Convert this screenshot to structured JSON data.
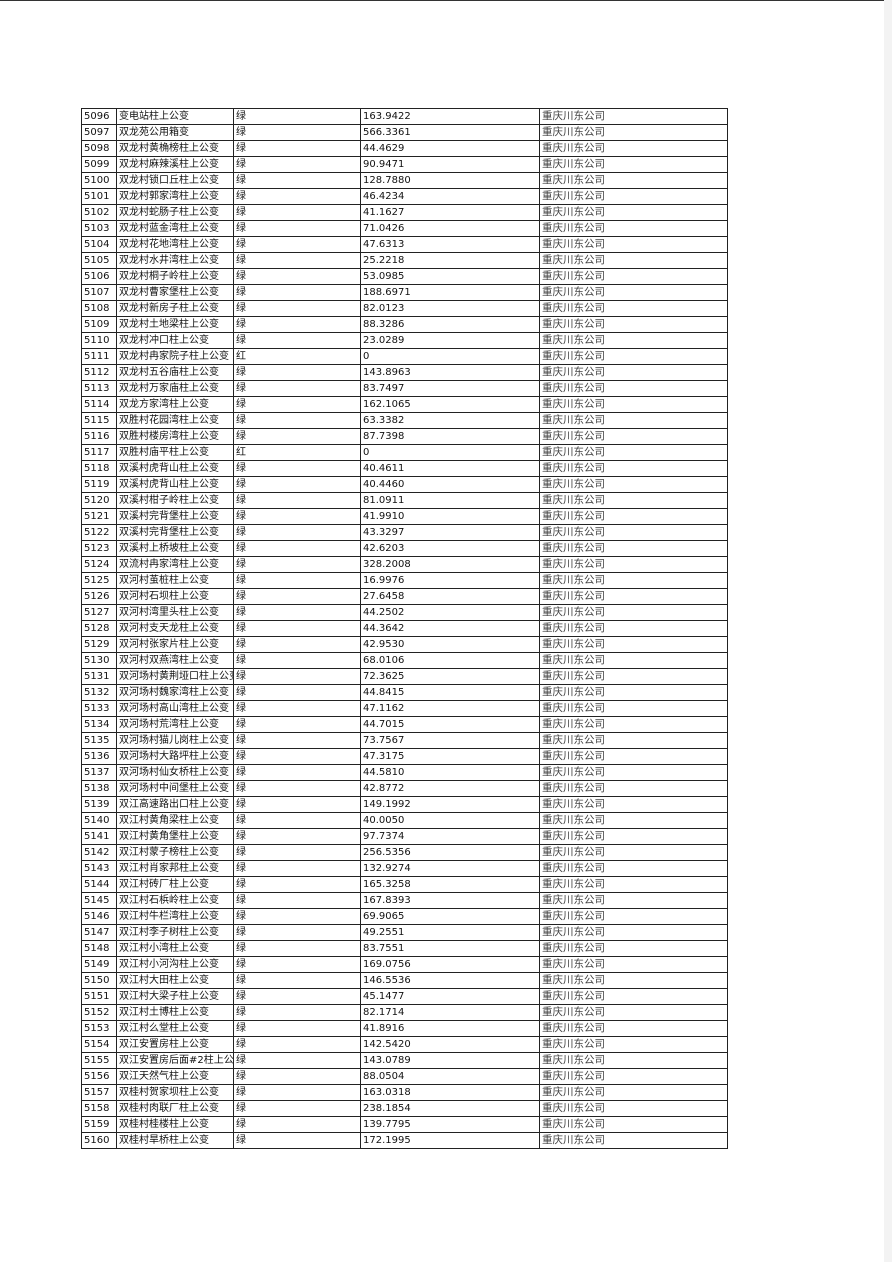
{
  "table": {
    "rows": [
      [
        "5096",
        "变电站柱上公变",
        "绿",
        "163.9422",
        "重庆川东公司"
      ],
      [
        "5097",
        "双龙苑公用箱变",
        "绿",
        "566.3361",
        "重庆川东公司"
      ],
      [
        "5098",
        "双龙村黄桷榜柱上公变",
        "绿",
        "44.4629",
        "重庆川东公司"
      ],
      [
        "5099",
        "双龙村麻辣溪柱上公变",
        "绿",
        "90.9471",
        "重庆川东公司"
      ],
      [
        "5100",
        "双龙村锁口丘柱上公变",
        "绿",
        "128.7880",
        "重庆川东公司"
      ],
      [
        "5101",
        "双龙村郭家湾柱上公变",
        "绿",
        "46.4234",
        "重庆川东公司"
      ],
      [
        "5102",
        "双龙村蛇肠子柱上公变",
        "绿",
        "41.1627",
        "重庆川东公司"
      ],
      [
        "5103",
        "双龙村蓝金湾柱上公变",
        "绿",
        "71.0426",
        "重庆川东公司"
      ],
      [
        "5104",
        "双龙村花地湾柱上公变",
        "绿",
        "47.6313",
        "重庆川东公司"
      ],
      [
        "5105",
        "双龙村水井湾柱上公变",
        "绿",
        "25.2218",
        "重庆川东公司"
      ],
      [
        "5106",
        "双龙村桐子岭柱上公变",
        "绿",
        "53.0985",
        "重庆川东公司"
      ],
      [
        "5107",
        "双龙村曹家堡柱上公变",
        "绿",
        "188.6971",
        "重庆川东公司"
      ],
      [
        "5108",
        "双龙村新房子柱上公变",
        "绿",
        "82.0123",
        "重庆川东公司"
      ],
      [
        "5109",
        "双龙村土地梁柱上公变",
        "绿",
        "88.3286",
        "重庆川东公司"
      ],
      [
        "5110",
        "双龙村冲口柱上公变",
        "绿",
        "23.0289",
        "重庆川东公司"
      ],
      [
        "5111",
        "双龙村冉家院子柱上公变",
        "红",
        "0",
        "重庆川东公司"
      ],
      [
        "5112",
        "双龙村五谷庙柱上公变",
        "绿",
        "143.8963",
        "重庆川东公司"
      ],
      [
        "5113",
        "双龙村万家庙柱上公变",
        "绿",
        "83.7497",
        "重庆川东公司"
      ],
      [
        "5114",
        "双龙方家湾柱上公变",
        "绿",
        "162.1065",
        "重庆川东公司"
      ],
      [
        "5115",
        "双胜村花园湾柱上公变",
        "绿",
        "63.3382",
        "重庆川东公司"
      ],
      [
        "5116",
        "双胜村楼房湾柱上公变",
        "绿",
        "87.7398",
        "重庆川东公司"
      ],
      [
        "5117",
        "双胜村庙平柱上公变",
        "红",
        "0",
        "重庆川东公司"
      ],
      [
        "5118",
        "双溪村虎背山柱上公变",
        "绿",
        "40.4611",
        "重庆川东公司"
      ],
      [
        "5119",
        "双溪村虎背山柱上公变",
        "绿",
        "40.4460",
        "重庆川东公司"
      ],
      [
        "5120",
        "双溪村柑子岭柱上公变",
        "绿",
        "81.0911",
        "重庆川东公司"
      ],
      [
        "5121",
        "双溪村完背堡柱上公变",
        "绿",
        "41.9910",
        "重庆川东公司"
      ],
      [
        "5122",
        "双溪村完背堡柱上公变",
        "绿",
        "43.3297",
        "重庆川东公司"
      ],
      [
        "5123",
        "双溪村上桥坡柱上公变",
        "绿",
        "42.6203",
        "重庆川东公司"
      ],
      [
        "5124",
        "双流村冉家湾柱上公变",
        "绿",
        "328.2008",
        "重庆川东公司"
      ],
      [
        "5125",
        "双河村茧桩柱上公变",
        "绿",
        "16.9976",
        "重庆川东公司"
      ],
      [
        "5126",
        "双河村石坝柱上公变",
        "绿",
        "27.6458",
        "重庆川东公司"
      ],
      [
        "5127",
        "双河村湾里头柱上公变",
        "绿",
        "44.2502",
        "重庆川东公司"
      ],
      [
        "5128",
        "双河村支天龙柱上公变",
        "绿",
        "44.3642",
        "重庆川东公司"
      ],
      [
        "5129",
        "双河村张家片柱上公变",
        "绿",
        "42.9530",
        "重庆川东公司"
      ],
      [
        "5130",
        "双河村双燕湾柱上公变",
        "绿",
        "68.0106",
        "重庆川东公司"
      ],
      [
        "5131",
        "双河场村黄荆垭口柱上公变",
        "绿",
        "72.3625",
        "重庆川东公司"
      ],
      [
        "5132",
        "双河场村魏家湾柱上公变",
        "绿",
        "44.8415",
        "重庆川东公司"
      ],
      [
        "5133",
        "双河场村高山湾柱上公变",
        "绿",
        "47.1162",
        "重庆川东公司"
      ],
      [
        "5134",
        "双河场村荒湾柱上公变",
        "绿",
        "44.7015",
        "重庆川东公司"
      ],
      [
        "5135",
        "双河场村猫儿岗柱上公变",
        "绿",
        "73.7567",
        "重庆川东公司"
      ],
      [
        "5136",
        "双河场村大路坪柱上公变",
        "绿",
        "47.3175",
        "重庆川东公司"
      ],
      [
        "5137",
        "双河场村仙女桥柱上公变",
        "绿",
        "44.5810",
        "重庆川东公司"
      ],
      [
        "5138",
        "双河场村中间堡柱上公变",
        "绿",
        "42.8772",
        "重庆川东公司"
      ],
      [
        "5139",
        "双江高速路出口柱上公变",
        "绿",
        "149.1992",
        "重庆川东公司"
      ],
      [
        "5140",
        "双江村黄角梁柱上公变",
        "绿",
        "40.0050",
        "重庆川东公司"
      ],
      [
        "5141",
        "双江村黄角堡柱上公变",
        "绿",
        "97.7374",
        "重庆川东公司"
      ],
      [
        "5142",
        "双江村蒙子榜柱上公变",
        "绿",
        "256.5356",
        "重庆川东公司"
      ],
      [
        "5143",
        "双江村肖家邦柱上公变",
        "绿",
        "132.9274",
        "重庆川东公司"
      ],
      [
        "5144",
        "双江村砖厂柱上公变",
        "绿",
        "165.3258",
        "重庆川东公司"
      ],
      [
        "5145",
        "双江村石梹岭柱上公变",
        "绿",
        "167.8393",
        "重庆川东公司"
      ],
      [
        "5146",
        "双江村牛栏湾柱上公变",
        "绿",
        "69.9065",
        "重庆川东公司"
      ],
      [
        "5147",
        "双江村李子树柱上公变",
        "绿",
        "49.2551",
        "重庆川东公司"
      ],
      [
        "5148",
        "双江村小湾柱上公变",
        "绿",
        "83.7551",
        "重庆川东公司"
      ],
      [
        "5149",
        "双江村小河沟柱上公变",
        "绿",
        "169.0756",
        "重庆川东公司"
      ],
      [
        "5150",
        "双江村大田柱上公变",
        "绿",
        "146.5536",
        "重庆川东公司"
      ],
      [
        "5151",
        "双江村大梁子柱上公变",
        "绿",
        "45.1477",
        "重庆川东公司"
      ],
      [
        "5152",
        "双江村土博柱上公变",
        "绿",
        "82.1714",
        "重庆川东公司"
      ],
      [
        "5153",
        "双江村么堂柱上公变",
        "绿",
        "41.8916",
        "重庆川东公司"
      ],
      [
        "5154",
        "双江安置房柱上公变",
        "绿",
        "142.5420",
        "重庆川东公司"
      ],
      [
        "5155",
        "双江安置房后面#2柱上公变",
        "绿",
        "143.0789",
        "重庆川东公司"
      ],
      [
        "5156",
        "双江天然气柱上公变",
        "绿",
        "88.0504",
        "重庆川东公司"
      ],
      [
        "5157",
        "双桂村贺家坝柱上公变",
        "绿",
        "163.0318",
        "重庆川东公司"
      ],
      [
        "5158",
        "双桂村肉联厂柱上公变",
        "绿",
        "238.1854",
        "重庆川东公司"
      ],
      [
        "5159",
        "双桂村桂楼柱上公变",
        "绿",
        "139.7795",
        "重庆川东公司"
      ],
      [
        "5160",
        "双桂村旱桥柱上公变",
        "绿",
        "172.1995",
        "重庆川东公司"
      ]
    ]
  }
}
